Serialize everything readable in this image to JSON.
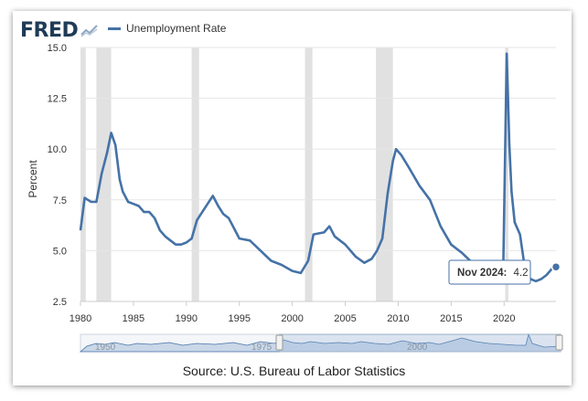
{
  "brand": {
    "logo_text": "FRED",
    "logo_icon": "chart-line-icon"
  },
  "colors": {
    "series": "#4572a7",
    "recession": "#e1e1e1",
    "grid": "#e6e6e6",
    "tooltip_border": "#4572a7",
    "navigator_fill": "#c9d7e8",
    "navigator_line": "#4572a7"
  },
  "source": "Source: U.S. Bureau of Labor Statistics",
  "tooltip": {
    "label": "Nov 2024:",
    "value": "4.2"
  },
  "navigator": {
    "labels": [
      "1950",
      "1975",
      "2000"
    ]
  },
  "chart_data": {
    "type": "line",
    "title": "",
    "ylabel": "Percent",
    "xlabel": "",
    "xlim": [
      1980,
      2024.9
    ],
    "ylim": [
      2.5,
      15.0
    ],
    "yticks": [
      2.5,
      5.0,
      7.5,
      10.0,
      12.5,
      15.0
    ],
    "ytick_labels": [
      "2.5",
      "5.0",
      "7.5",
      "10.0",
      "12.5",
      "15.0"
    ],
    "xticks": [
      1980,
      1985,
      1990,
      1995,
      2000,
      2005,
      2010,
      2015,
      2020
    ],
    "xtick_labels": [
      "1980",
      "1985",
      "1990",
      "1995",
      "2000",
      "2005",
      "2010",
      "2015",
      "2020"
    ],
    "grid": "horizontal",
    "legend": "top-left",
    "recessions": [
      [
        1980.0,
        1980.5
      ],
      [
        1981.5,
        1982.9
      ],
      [
        1990.5,
        1991.2
      ],
      [
        2001.2,
        2001.9
      ],
      [
        2007.9,
        2009.5
      ],
      [
        2020.1,
        2020.4
      ]
    ],
    "series": [
      {
        "name": "Unemployment Rate",
        "x": [
          1980.0,
          1980.4,
          1980.7,
          1981.0,
          1981.5,
          1982.0,
          1982.5,
          1982.9,
          1983.3,
          1983.7,
          1984.0,
          1984.5,
          1985.0,
          1985.5,
          1986.0,
          1986.5,
          1987.0,
          1987.5,
          1988.0,
          1988.5,
          1989.0,
          1989.5,
          1990.0,
          1990.5,
          1991.0,
          1991.5,
          1992.0,
          1992.5,
          1993.0,
          1993.5,
          1994.0,
          1994.5,
          1995.0,
          1996.0,
          1997.0,
          1998.0,
          1999.0,
          2000.0,
          2000.8,
          2001.5,
          2002.0,
          2003.0,
          2003.5,
          2004.0,
          2005.0,
          2006.0,
          2006.8,
          2007.5,
          2008.0,
          2008.5,
          2009.0,
          2009.5,
          2009.8,
          2010.3,
          2011.0,
          2012.0,
          2013.0,
          2014.0,
          2015.0,
          2016.0,
          2017.0,
          2018.0,
          2019.0,
          2019.9,
          2020.25,
          2020.33,
          2020.5,
          2020.7,
          2021.0,
          2021.5,
          2022.0,
          2022.5,
          2023.0,
          2023.5,
          2024.0,
          2024.5,
          2024.9
        ],
        "values": [
          6.0,
          7.6,
          7.5,
          7.4,
          7.4,
          8.8,
          9.8,
          10.8,
          10.2,
          8.5,
          7.9,
          7.4,
          7.3,
          7.2,
          6.9,
          6.9,
          6.6,
          6.0,
          5.7,
          5.5,
          5.3,
          5.3,
          5.4,
          5.6,
          6.5,
          6.9,
          7.3,
          7.7,
          7.2,
          6.8,
          6.6,
          6.1,
          5.6,
          5.5,
          5.0,
          4.5,
          4.3,
          4.0,
          3.9,
          4.5,
          5.8,
          5.9,
          6.2,
          5.7,
          5.3,
          4.7,
          4.4,
          4.6,
          5.0,
          5.6,
          7.8,
          9.4,
          10.0,
          9.7,
          9.1,
          8.2,
          7.5,
          6.2,
          5.3,
          4.9,
          4.4,
          4.0,
          3.6,
          3.5,
          14.7,
          13.2,
          10.2,
          7.9,
          6.4,
          5.8,
          4.0,
          3.6,
          3.5,
          3.6,
          3.8,
          4.1,
          4.2
        ]
      }
    ]
  }
}
